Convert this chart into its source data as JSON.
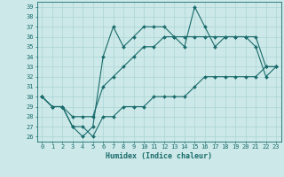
{
  "title": "",
  "xlabel": "Humidex (Indice chaleur)",
  "ylabel": "",
  "x": [
    0,
    1,
    2,
    3,
    4,
    5,
    6,
    7,
    8,
    9,
    10,
    11,
    12,
    13,
    14,
    15,
    16,
    17,
    18,
    19,
    20,
    21,
    22,
    23
  ],
  "line_min": [
    30,
    29,
    29,
    27,
    27,
    26,
    28,
    28,
    29,
    29,
    29,
    30,
    30,
    30,
    30,
    31,
    32,
    32,
    32,
    32,
    32,
    32,
    33,
    33
  ],
  "line_max": [
    30,
    29,
    29,
    27,
    26,
    27,
    34,
    37,
    35,
    36,
    37,
    37,
    37,
    36,
    35,
    39,
    37,
    35,
    36,
    36,
    36,
    35,
    32,
    33
  ],
  "line_mid": [
    30,
    29,
    29,
    28,
    28,
    28,
    31,
    32,
    33,
    34,
    35,
    35,
    36,
    36,
    36,
    36,
    36,
    36,
    36,
    36,
    36,
    36,
    33,
    33
  ],
  "ylim": [
    25.5,
    39.5
  ],
  "yticks": [
    26,
    27,
    28,
    29,
    30,
    31,
    32,
    33,
    34,
    35,
    36,
    37,
    38,
    39
  ],
  "xticks": [
    0,
    1,
    2,
    3,
    4,
    5,
    6,
    7,
    8,
    9,
    10,
    11,
    12,
    13,
    14,
    15,
    16,
    17,
    18,
    19,
    20,
    21,
    22,
    23
  ],
  "line_color": "#1a6b6b",
  "bg_color": "#cce8e8",
  "grid_color": "#aad4d4",
  "markersize": 2.0,
  "linewidth": 0.8,
  "tick_fontsize": 5.0,
  "xlabel_fontsize": 6.0
}
